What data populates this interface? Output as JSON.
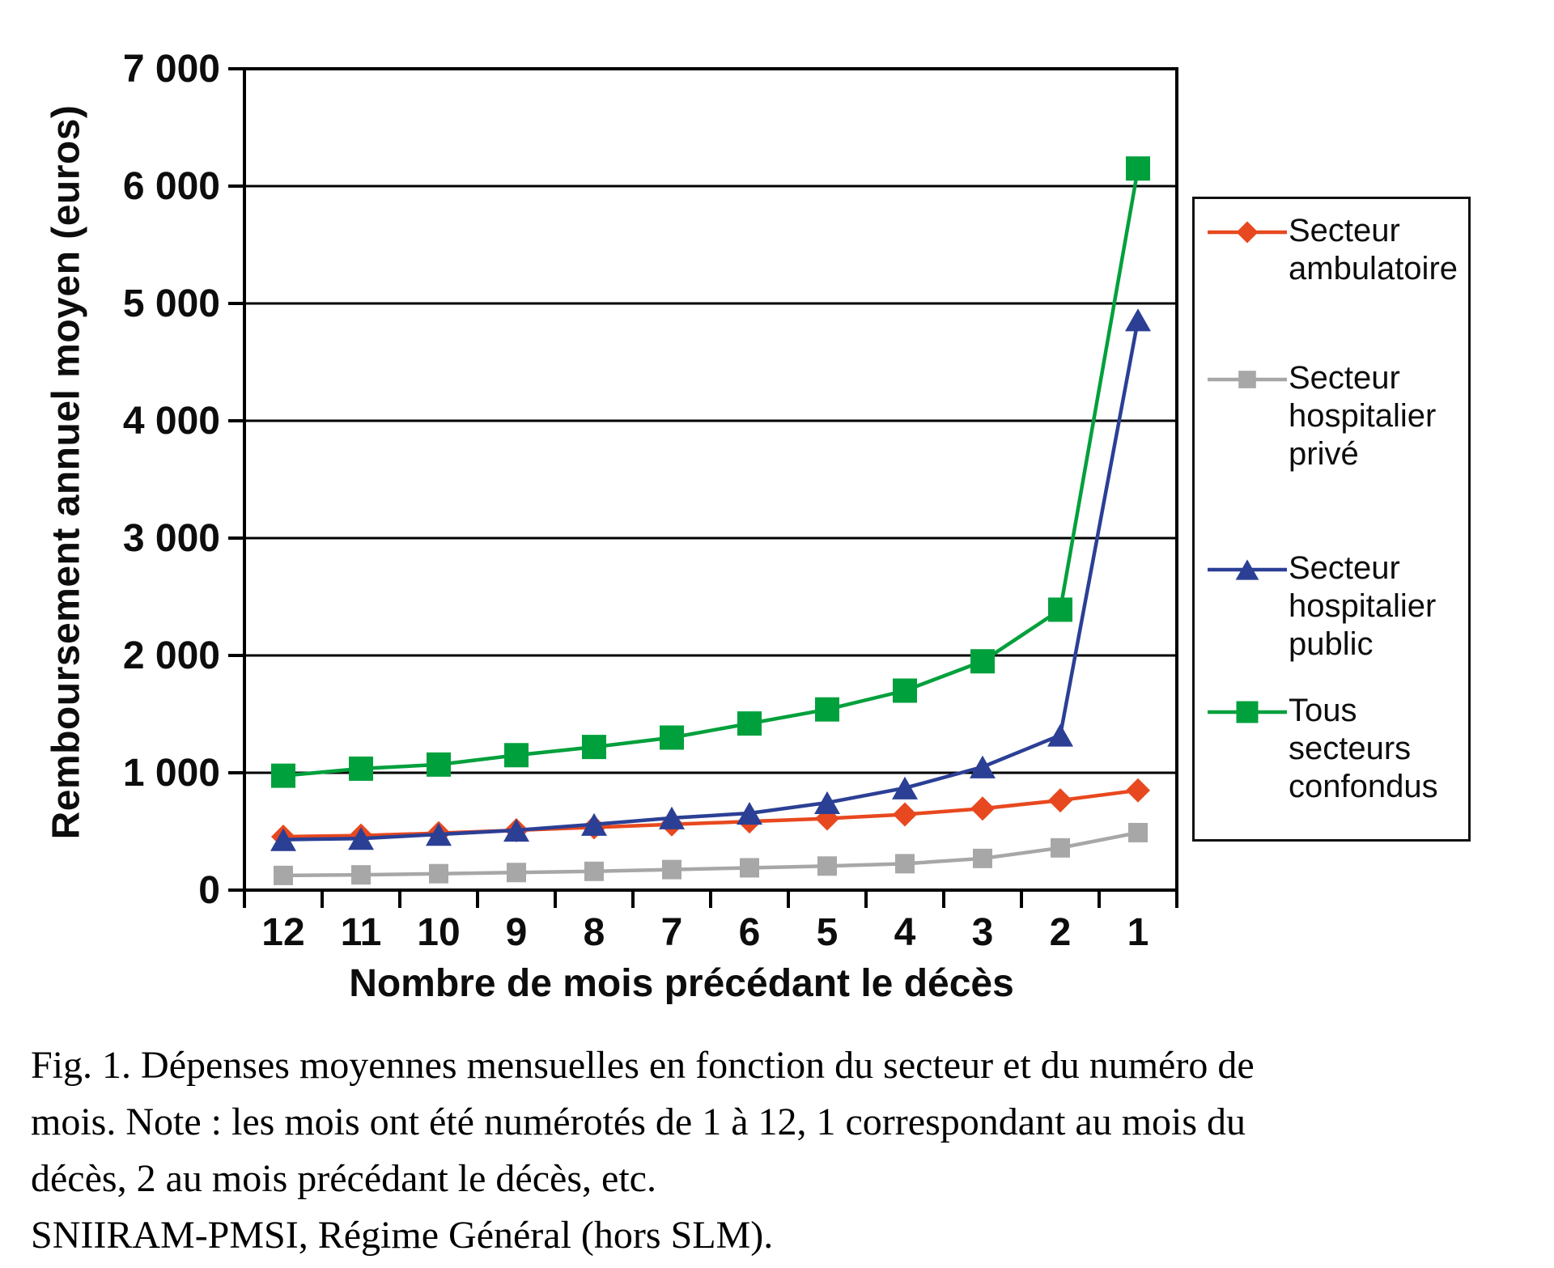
{
  "figure": {
    "y_axis_title": "Remboursement annuel moyen (euros)",
    "x_axis_title": "Nombre de mois précédant le décès"
  },
  "caption": {
    "lines": [
      "Fig. 1.  Dépenses moyennes mensuelles en fonction du secteur et du numéro de",
      "mois. Note : les mois ont été numérotés de 1 à 12, 1 correspondant au mois du",
      "décès, 2 au mois précédant le décès, etc.",
      "SNIIRAM-PMSI, Régime Général (hors SLM)."
    ]
  },
  "chart_data": {
    "type": "line",
    "title": "",
    "xlabel": "Nombre de mois précédant le décès",
    "ylabel": "Remboursement annuel moyen (euros)",
    "categories": [
      "12",
      "11",
      "10",
      "9",
      "8",
      "7",
      "6",
      "5",
      "4",
      "3",
      "2",
      "1"
    ],
    "ylim": [
      0,
      7000
    ],
    "grid": true,
    "legend_position": "right",
    "y_ticks": {
      "values": [
        0,
        1000,
        2000,
        3000,
        4000,
        5000,
        6000,
        7000
      ],
      "labels": [
        "0",
        "1 000",
        "2 000",
        "3 000",
        "4 000",
        "5 000",
        "6 000",
        "7 000"
      ]
    },
    "series": [
      {
        "name": "Secteur ambulatoire",
        "color": "#e8481f",
        "marker": "diamond",
        "marker_size": 30,
        "values": [
          455,
          465,
          485,
          510,
          535,
          560,
          585,
          610,
          645,
          695,
          765,
          850
        ]
      },
      {
        "name": "Secteur hospitalier privé",
        "color": "#a7a7a7",
        "marker": "square",
        "marker_size": 24,
        "values": [
          125,
          130,
          140,
          150,
          160,
          175,
          190,
          205,
          225,
          270,
          360,
          490
        ]
      },
      {
        "name": "Secteur hospitalier public",
        "color": "#2b3f95",
        "marker": "triangle",
        "marker_size": 32,
        "values": [
          430,
          440,
          475,
          510,
          560,
          615,
          655,
          745,
          870,
          1050,
          1320,
          4860
        ]
      },
      {
        "name": "Tous secteurs confondus",
        "color": "#00a03c",
        "marker": "square",
        "marker_size": 30,
        "values": [
          975,
          1035,
          1070,
          1150,
          1220,
          1300,
          1420,
          1540,
          1700,
          1950,
          2390,
          6150
        ]
      }
    ]
  }
}
